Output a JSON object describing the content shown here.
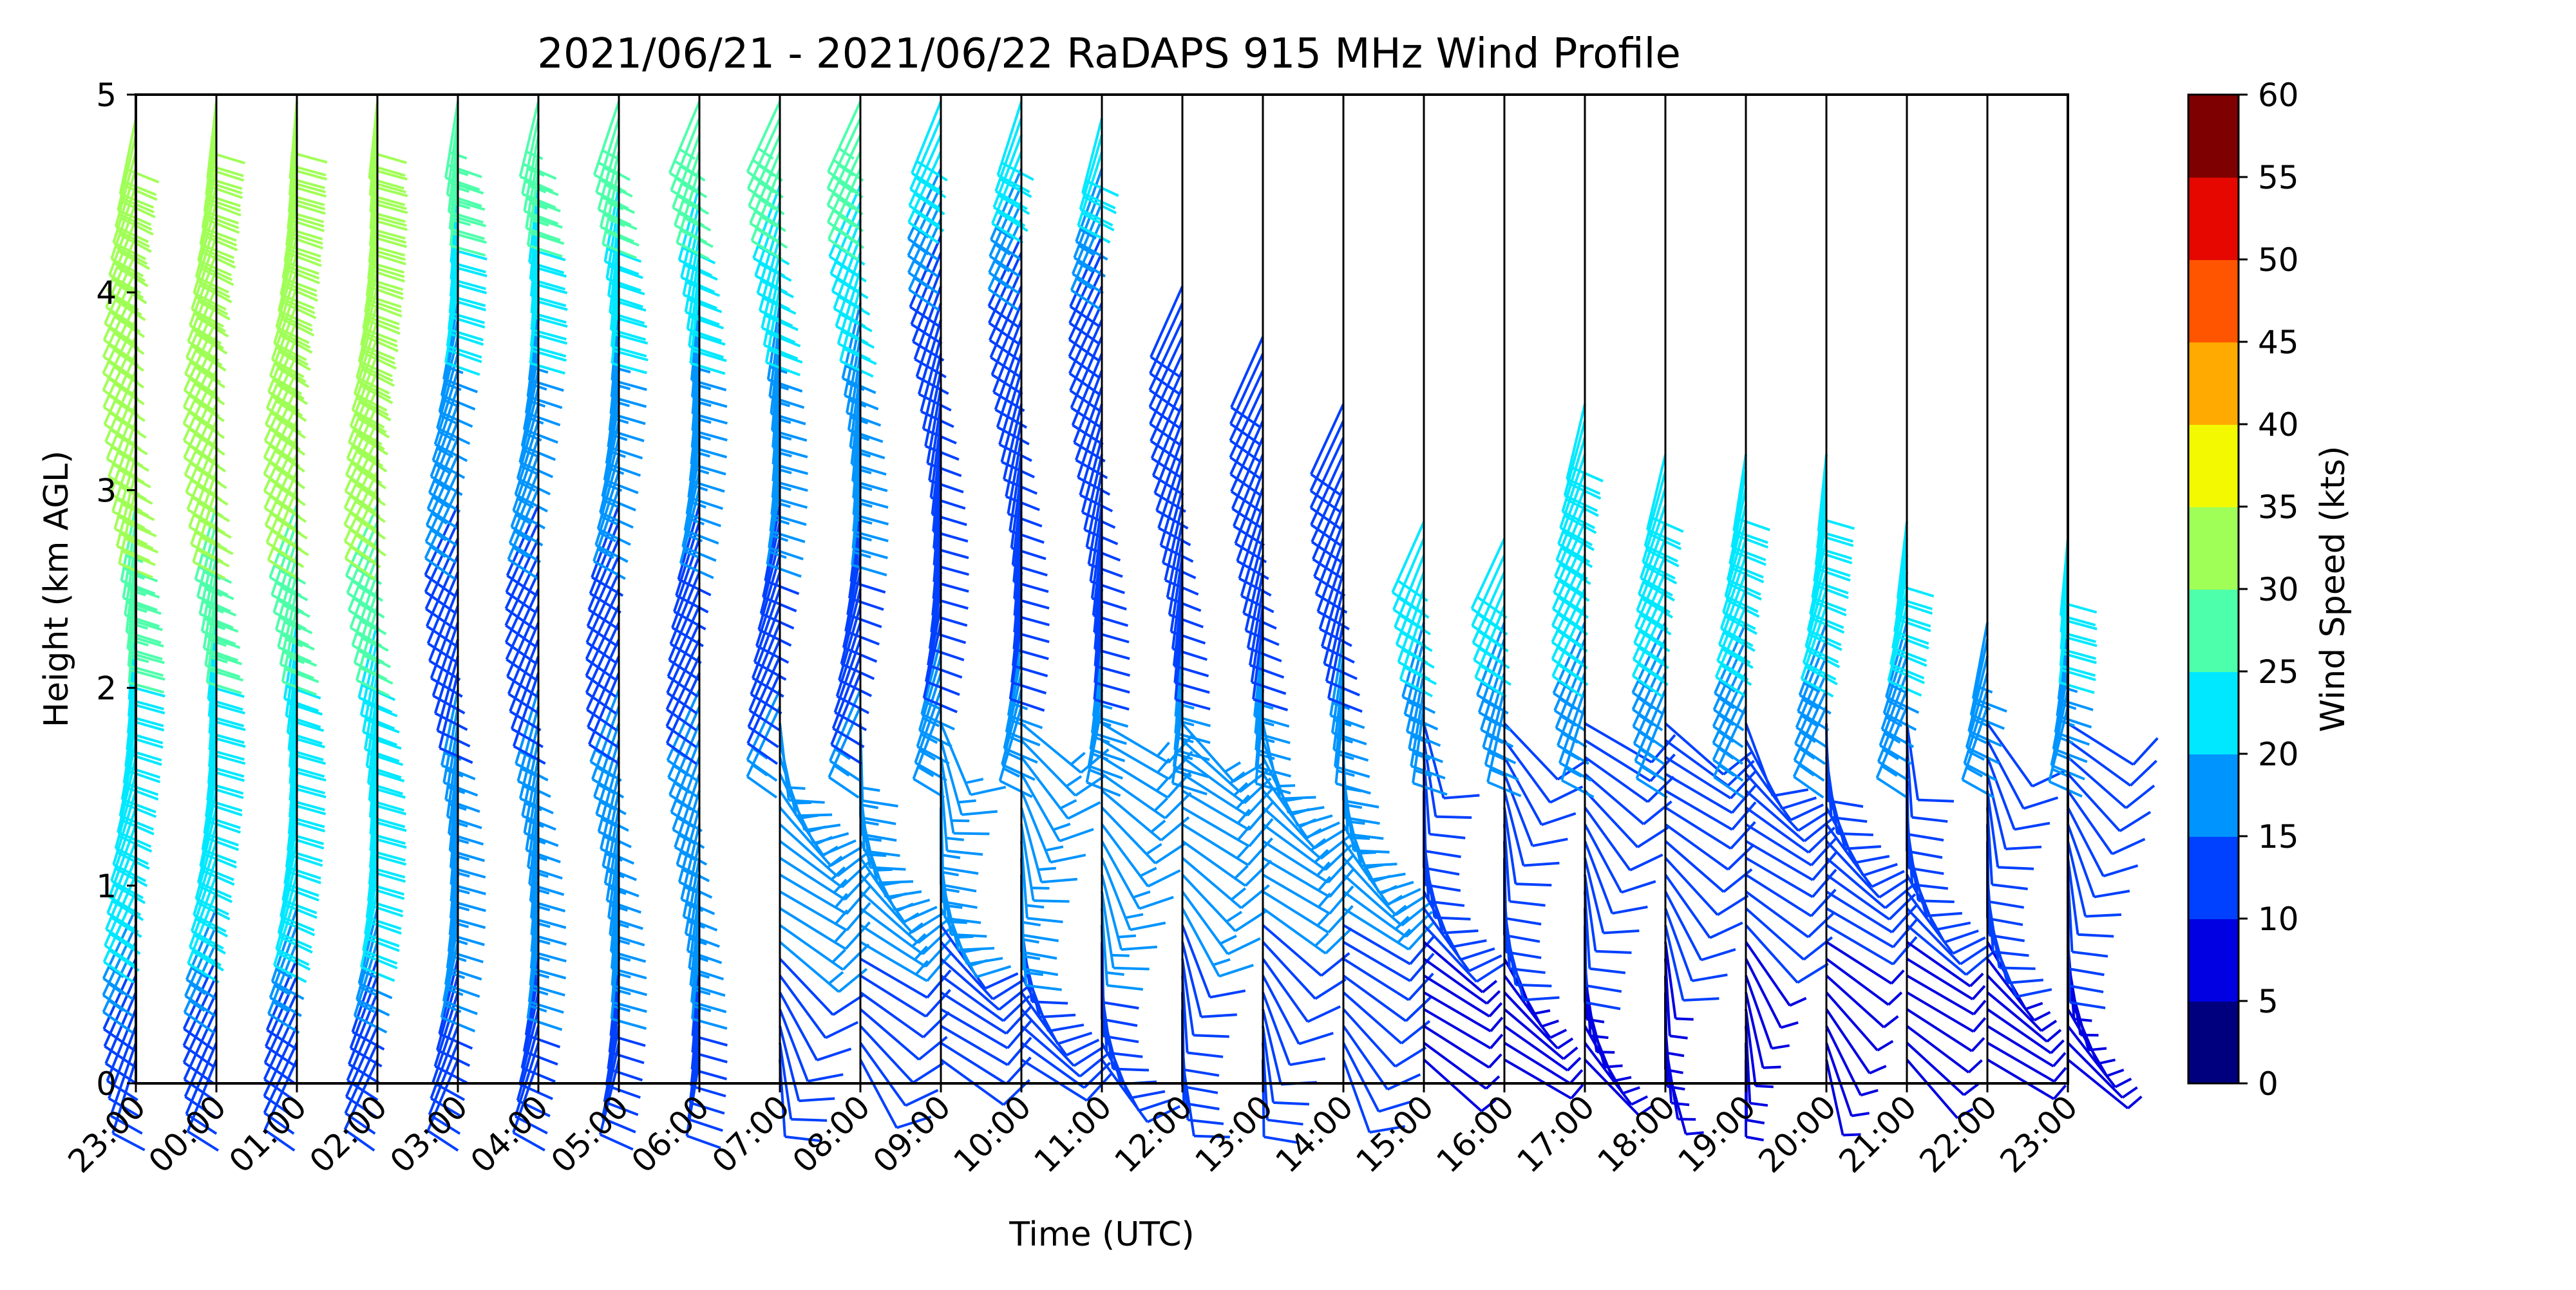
{
  "chart_data": {
    "type": "wind-barb-profile",
    "title": "2021/06/21 - 2021/06/22 RaDAPS 915 MHz Wind Profile",
    "xlabel": "Time (UTC)",
    "ylabel": "Height (km AGL)",
    "ylim": [
      0,
      5
    ],
    "yticks": [
      "0",
      "1",
      "2",
      "3",
      "4",
      "5"
    ],
    "xticks": [
      "23:00",
      "00:00",
      "01:00",
      "02:00",
      "03:00",
      "04:00",
      "05:00",
      "06:00",
      "07:00",
      "08:00",
      "09:00",
      "10:00",
      "11:00",
      "12:00",
      "13:00",
      "14:00",
      "15:00",
      "16:00",
      "17:00",
      "18:00",
      "19:00",
      "20:00",
      "21:00",
      "22:00",
      "23:00"
    ],
    "grid": "vertical lines at each hour",
    "colorbar": {
      "label": "Wind Speed (kts)",
      "ticks": [
        "0",
        "5",
        "10",
        "15",
        "20",
        "25",
        "30",
        "35",
        "40",
        "45",
        "50",
        "55",
        "60"
      ],
      "colors": [
        "#00007f",
        "#0000e2",
        "#0040ff",
        "#0094ff",
        "#00e8ff",
        "#4dffaa",
        "#a0ff57",
        "#f3f900",
        "#ffaa00",
        "#ff5500",
        "#e50700",
        "#7f0000"
      ]
    },
    "top_heights_km": [
      4.95,
      5.0,
      5.0,
      5.0,
      5.0,
      5.0,
      5.0,
      5.0,
      5.0,
      5.0,
      5.0,
      5.0,
      4.95,
      4.1,
      3.8,
      3.45,
      2.9,
      2.8,
      3.5,
      3.2,
      3.2,
      3.2,
      2.9,
      2.4,
      2.8
    ],
    "speed_profiles_kts": [
      {
        "heights_km": [
          0.15,
          0.6,
          1.0,
          1.8,
          2.2,
          3.0,
          4.0,
          5.0
        ],
        "speeds": [
          10,
          14,
          22,
          25,
          24,
          30,
          33,
          35
        ]
      },
      {
        "heights_km": [
          0.15,
          0.6,
          1.0,
          1.7,
          2.0,
          2.8,
          3.5,
          4.0,
          4.6,
          5.0
        ],
        "speeds": [
          11,
          14,
          20,
          18,
          15,
          14,
          18,
          20,
          25,
          30
        ]
      },
      {
        "heights_km": [
          0.15,
          0.5,
          1.4,
          2.0,
          2.5,
          3.0,
          3.5,
          4.0,
          4.5,
          4.8
        ],
        "speeds": [
          10,
          12,
          20,
          16,
          14,
          13,
          12,
          13,
          16,
          22
        ]
      },
      {
        "heights_km": [
          0.15,
          0.5,
          1.0,
          1.7,
          2.2,
          2.5,
          3.5,
          4.5,
          5.0
        ],
        "speeds": [
          7,
          8,
          12,
          14,
          18,
          22,
          24,
          28,
          30
        ]
      }
    ]
  }
}
